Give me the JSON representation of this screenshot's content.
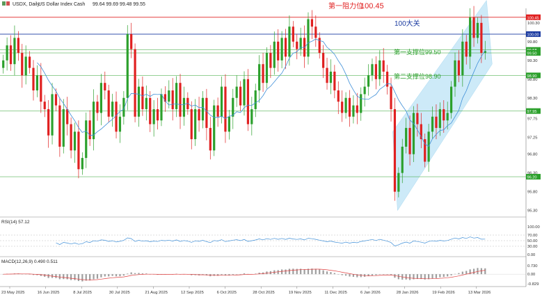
{
  "header": {
    "symbol": "USDX, Daily:",
    "description": "US Dollar Index Cash",
    "ohlc": "99.64 99.69 99.48 99.55"
  },
  "colors": {
    "bull": "#2ca02c",
    "bear": "#e02020",
    "ma": "#3f8fd8",
    "channel": "#c8e8f8",
    "resistance": "#e02020",
    "big_level": "#1a3aa0",
    "support": "#2ca02c",
    "rsi": "#3f8fd8",
    "macd_hist": "#9e9e9e",
    "macd_signal": "#e04040"
  },
  "chart_data": [
    {
      "type": "candlestick",
      "price_scale": {
        "min": 95.2,
        "max": 100.65,
        "ticks": [
          "100.30",
          "99.80",
          "99.30",
          "98.80",
          "98.30",
          "97.75",
          "97.25",
          "96.80",
          "96.30",
          "95.80",
          "95.30"
        ]
      },
      "x_labels": [
        "23 May 2025",
        "16 Jun 2025",
        "8 Jul 2025",
        "30 Jul 2025",
        "21 Aug 2025",
        "12 Sep 2025",
        "6 Oct 2025",
        "28 Oct 2025",
        "19 Nov 2025",
        "11 Dec 2025",
        "6 Jan 2026",
        "28 Jan 2026",
        "19 Feb 2026",
        "13 Mar 2026"
      ],
      "closes": [
        99.3,
        99.7,
        99.2,
        99.9,
        99.5,
        98.9,
        99.4,
        99.1,
        98.5,
        98.9,
        98.2,
        98.0,
        97.3,
        98.4,
        98.1,
        97.0,
        98.0,
        97.6,
        96.9,
        97.4,
        96.4,
        96.7,
        97.7,
        97.2,
        98.2,
        97.9,
        98.7,
        98.5,
        97.8,
        98.2,
        97.4,
        97.8,
        98.3,
        100.0,
        99.6,
        97.8,
        98.6,
        98.0,
        98.3,
        97.6,
        98.0,
        97.7,
        98.4,
        98.2,
        98.5,
        98.0,
        98.7,
        97.8,
        98.3,
        98.0,
        97.2,
        98.0,
        97.7,
        98.3,
        97.5,
        96.9,
        98.1,
        97.8,
        98.6,
        97.4,
        97.8,
        98.3,
        98.6,
        98.1,
        98.8,
        97.6,
        98.0,
        98.5,
        99.2,
        98.7,
        99.5,
        99.1,
        99.8,
        99.3,
        99.9,
        99.4,
        100.2,
        99.8,
        99.6,
        99.9,
        99.4,
        100.4,
        100.2,
        99.9,
        99.5,
        99.1,
        98.7,
        99.0,
        98.5,
        98.2,
        97.9,
        98.3,
        97.8,
        98.1,
        97.9,
        98.4,
        98.6,
        98.9,
        99.2,
        98.8,
        99.3,
        99.0,
        98.6,
        98.0,
        95.8,
        96.3,
        97.0,
        97.5,
        96.8,
        97.9,
        97.6,
        97.2,
        96.6,
        97.4,
        97.8,
        97.5,
        98.0,
        97.7,
        97.9,
        98.6,
        99.3,
        98.9,
        99.8,
        99.4,
        100.45,
        99.9,
        100.3,
        99.5,
        99.55
      ],
      "ma_period_hint": "14-day",
      "annotations": {
        "resistance": {
          "label": "第一阻力位",
          "value_text": "100.45",
          "value": 100.45,
          "tag": "100.45"
        },
        "big_level": {
          "label": "100大关",
          "value": 100.0,
          "tag": "100.00"
        },
        "support1": {
          "label": "第一支撑位99.50",
          "value": 99.5,
          "tag": "99.50"
        },
        "support2": {
          "label": "第二支撑位98.90",
          "value": 98.9,
          "tag": "98.90"
        },
        "line_a": {
          "value": 97.95,
          "tag": "97.95"
        },
        "line_b": {
          "value": 96.2,
          "tag": "96.20"
        },
        "upper_unlabeled": {
          "value": 99.58,
          "tag": "99.58"
        }
      }
    },
    {
      "type": "line",
      "title": "RSI(14) 57.12",
      "ylim": [
        0,
        100
      ],
      "ticks": [
        "100.00",
        "70.00",
        "50.00",
        "30.00",
        "0.00"
      ],
      "levels": [
        70,
        50,
        30
      ]
    },
    {
      "type": "bar",
      "title": "MACD(12,26,9) 0.490 0.511",
      "ticks": [
        "0.730",
        "0.00",
        "-0.829"
      ],
      "ylim": [
        -0.829,
        0.73
      ]
    }
  ]
}
